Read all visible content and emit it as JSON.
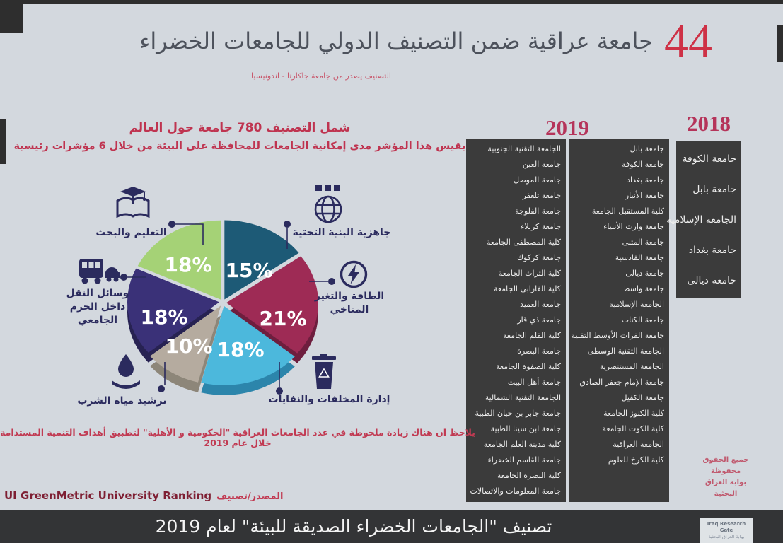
{
  "header": {
    "count": "44",
    "title": "جامعة عراقية ضمن التصنيف الدولي للجامعات الخضراء",
    "subtitle": "التصنيف يصدر من جامعة جاكارتا - اندونيسيا"
  },
  "intro": {
    "line1": "شمل التصنيف 780 جامعة حول العالم",
    "line2": "يقيس هذا المؤشر مدى إمكانية الجامعات للمحافظة على البيئة من خلال 6 مؤشرات رئيسية"
  },
  "chart_data": {
    "type": "pie",
    "style": "3d-exploded",
    "unit": "percent",
    "legend_position": "around",
    "slices": [
      {
        "label": "جاهزية البنية التحتية",
        "value": 15,
        "pct": "15%",
        "color": "#1d5a76",
        "side_color": "#123c52",
        "icon": "globe-grid-icon"
      },
      {
        "label": "الطاقة والتغير المناخي",
        "value": 21,
        "pct": "21%",
        "color": "#9e2b55",
        "side_color": "#6e1e3e",
        "icon": "lightning-icon"
      },
      {
        "label": "إدارة المخلفات والنفايات",
        "value": 18,
        "pct": "18%",
        "color": "#4cb8dc",
        "side_color": "#2c85ab",
        "icon": "trash-recycle-icon"
      },
      {
        "label": "ترشيد مياه الشرب",
        "value": 10,
        "pct": "10%",
        "color": "#b5ab9f",
        "side_color": "#8d8679",
        "icon": "water-hand-icon"
      },
      {
        "label": "وسائل النقل داخل الحرم الجامعي",
        "value": 18,
        "pct": "18%",
        "color": "#3a3178",
        "side_color": "#272252",
        "icon": "bus-icon"
      },
      {
        "label": "التعليم والبحث",
        "value": 18,
        "pct": "18%",
        "color": "#a5d276",
        "side_color": "#7ba658",
        "icon": "education-icon"
      }
    ]
  },
  "rankings": {
    "y2019": {
      "label": "2019",
      "col1": [
        "الجامعة التقنية الجنوبية",
        "جامعة العين",
        "جامعة الموصل",
        "جامعة تلعفر",
        "جامعة الفلوجة",
        "جامعة كربلاء",
        "كلية المصطفى الجامعة",
        "جامعة كركوك",
        "كلية التراث الجامعة",
        "كلية الفارابي الجامعة",
        "جامعة العميد",
        "جامعة ذي قار",
        "كلية القلم الجامعة",
        "جامعة البصرة",
        "كلية الصفوة الجامعة",
        "جامعة أهل البيت",
        "الجامعة التقنية الشمالية",
        "جامعة جابر بن حيان الطبية",
        "جامعة ابن سينا الطبية",
        "كلية مدينة العلم الجامعة",
        "جامعة القاسم الخضراء",
        "كلية البصرة الجامعة",
        "جامعة المعلومات والاتصالات"
      ],
      "col2": [
        "جامعة بابل",
        "جامعة الكوفة",
        "جامعة بغداد",
        "جامعة الأنبار",
        "كلية المستقبل الجامعة",
        "جامعة وارث الأنبياء",
        "جامعة المثنى",
        "جامعة القادسية",
        "جامعة ديالى",
        "جامعة واسط",
        "الجامعة الإسلامية",
        "جامعة الكتاب",
        "جامعة الفرات الأوسط التقنية",
        "الجامعة التقنية الوسطى",
        "الجامعة المستنصرية",
        "جامعة الإمام جعفر الصادق",
        "جامعة الكفيل",
        "كلية الكنوز الجامعة",
        "كلية الكوت الجامعة",
        "الجامعة العراقية",
        "كلية الكرخ للعلوم"
      ]
    },
    "y2018": {
      "label": "2018",
      "items": [
        "جامعة الكوفة",
        "جامعة بابل",
        "الجامعة الإسلامية",
        "جامعة بغداد",
        "جامعة ديالى"
      ]
    }
  },
  "note": "يلاحظ ان هناك زيادة ملحوظة في عدد الجامعات العراقية \"الحكومية و الأهلية\" لتطبيق أهداف التنمية المستدامة خلال عام 2019",
  "source": {
    "en": "UI GreenMetric University Ranking",
    "ar": "المصدر/تصنيف"
  },
  "rights": [
    "جميع الحقوق",
    "محفوظة",
    "بوابة العراق البحثية"
  ],
  "footer": {
    "title": "تصنيف \"الجامعات الخضراء الصديقة للبيئة\" لعام 2019",
    "logo_line1": "Iraq Research Gate",
    "logo_line2": "بوابة العراق البحثية"
  }
}
